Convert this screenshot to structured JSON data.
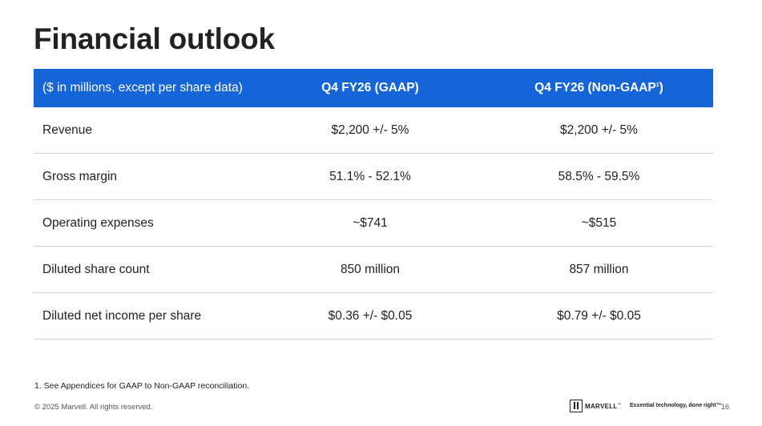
{
  "slide": {
    "title": "Financial outlook",
    "table": {
      "header": {
        "label": "($ in millions, except per share data)",
        "col_gaap": "Q4 FY26 (GAAP)",
        "col_nongaap": "Q4 FY26 (Non-GAAP",
        "col_nongaap_footnote_mark": "1",
        "col_nongaap_close": ")"
      },
      "rows": [
        {
          "metric": "Revenue",
          "gaap": "$2,200 +/- 5%",
          "nongaap": "$2,200 +/- 5%"
        },
        {
          "metric": "Gross margin",
          "gaap": "51.1% - 52.1%",
          "nongaap": "58.5% - 59.5%"
        },
        {
          "metric": "Operating expenses",
          "gaap": "~$741",
          "nongaap": "~$515"
        },
        {
          "metric": "Diluted share count",
          "gaap": "850 million",
          "nongaap": "857 million"
        },
        {
          "metric": "Diluted net income per share",
          "gaap": "$0.36 +/- $0.05",
          "nongaap": "$0.79 +/- $0.05"
        }
      ]
    },
    "footnote": "1. See Appendices for GAAP to Non-GAAP reconciliation.",
    "footer": {
      "copyright": "© 2025 Marvell. All rights reserved.",
      "logo_word": "MARVELL",
      "logo_tm": "™",
      "tagline": "Essential technology, done right™",
      "page_number": "16"
    },
    "colors": {
      "header_bg": "#1565d8",
      "header_text": "#ffffff",
      "row_divider": "#d4d4d4",
      "text": "#222222"
    },
    "icons": {
      "logo": "marvell-logo-icon"
    }
  }
}
